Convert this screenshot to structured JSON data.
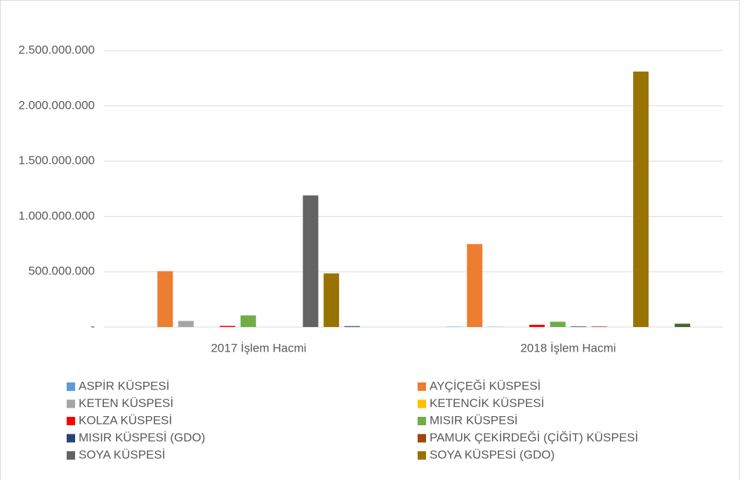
{
  "chart_data": {
    "type": "bar",
    "categories": [
      "2017 İşlem Hacmi",
      "2018 İşlem Hacmi"
    ],
    "series": [
      {
        "name": "ASPİR KÜSPESİ",
        "color": "#5b9bd5",
        "values": [
          0,
          3000000
        ]
      },
      {
        "name": "AYÇİÇEĞİ KÜSPESİ",
        "color": "#ed7d31",
        "values": [
          505000000,
          750000000
        ]
      },
      {
        "name": "KETEN KÜSPESİ",
        "color": "#a5a5a5",
        "values": [
          55000000,
          3000000
        ]
      },
      {
        "name": "KETENCİK KÜSPESİ",
        "color": "#ffc000",
        "values": [
          0,
          0
        ]
      },
      {
        "name": "KOLZA KÜSPESİ",
        "color": "#ff0000",
        "values": [
          10000000,
          20000000
        ]
      },
      {
        "name": "MISIR KÜSPESİ",
        "color": "#70ad47",
        "values": [
          105000000,
          48000000
        ]
      },
      {
        "name": "MISIR KÜSPESİ (GDO)",
        "color": "#264478",
        "values": [
          0,
          5000000
        ]
      },
      {
        "name": "PAMUK ÇEKİRDEĞİ (ÇİĞİT) KÜSPESİ",
        "color": "#9e480e",
        "values": [
          0,
          5000000
        ]
      },
      {
        "name": "SOYA KÜSPESİ",
        "color": "#636363",
        "values": [
          1190000000,
          0
        ]
      },
      {
        "name": "SOYA KÜSPESİ (GDO)",
        "color": "#997300",
        "values": [
          485000000,
          2310000000
        ]
      },
      {
        "color": "#255e91",
        "values": [
          8000000,
          0
        ]
      },
      {
        "color": "#43682b",
        "values": [
          0,
          30000000
        ]
      }
    ],
    "ylim": [
      0,
      2500000000
    ],
    "yticks": [
      {
        "value": 0,
        "label": "-"
      },
      {
        "value": 500000000,
        "label": "500.000.000"
      },
      {
        "value": 1000000000,
        "label": "1.000.000.000"
      },
      {
        "value": 1500000000,
        "label": "1.500.000.000"
      },
      {
        "value": 2000000000,
        "label": "2.000.000.000"
      },
      {
        "value": 2500000000,
        "label": "2.500.000.000"
      }
    ],
    "grid": true,
    "legend": "bottom"
  }
}
